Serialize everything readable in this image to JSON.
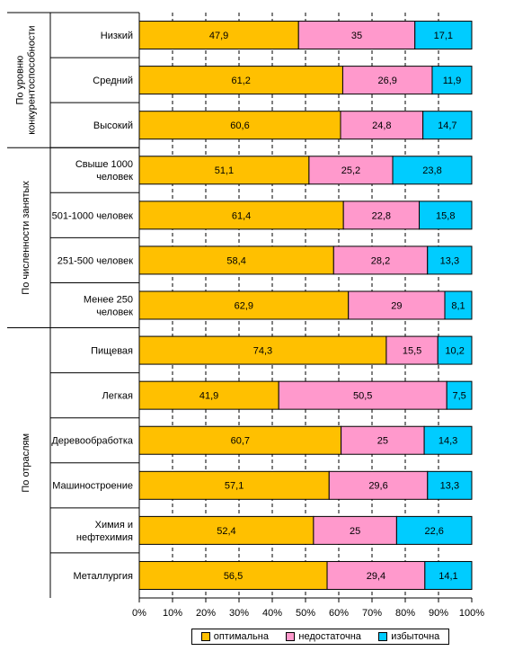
{
  "chart_data": {
    "type": "bar",
    "orientation": "horizontal",
    "stacked": "percent",
    "groups": [
      {
        "label": "По уровню конкурентоспособности",
        "lines": [
          "По уровню",
          "конкурентоспособности"
        ],
        "rows": 3
      },
      {
        "label": "По численности занятых",
        "lines": [
          "По численности занятых"
        ],
        "rows": 4
      },
      {
        "label": "По отраслям",
        "lines": [
          "По отраслям"
        ],
        "rows": 6
      }
    ],
    "categories": [
      "Низкий",
      "Средний",
      "Высокий",
      "Свыше 1000 человек",
      "501-1000 человек",
      "251-500 человек",
      "Менее 250 человек",
      "Пищевая",
      "Легкая",
      "Деревообработка",
      "Машиностроение",
      "Химия и нефтехимия",
      "Металлургия"
    ],
    "category_lines": [
      [
        "Низкий"
      ],
      [
        "Средний"
      ],
      [
        "Высокий"
      ],
      [
        "Свыше 1000",
        "человек"
      ],
      [
        "501-1000 человек"
      ],
      [
        "251-500 человек"
      ],
      [
        "Менее 250",
        "человек"
      ],
      [
        "Пищевая"
      ],
      [
        "Легкая"
      ],
      [
        "Деревообработка"
      ],
      [
        "Машиностроение"
      ],
      [
        "Химия и",
        "нефтехимия"
      ],
      [
        "Металлургия"
      ]
    ],
    "series": [
      {
        "name": "оптимальна",
        "color": "#FFC000",
        "values": [
          47.9,
          61.2,
          60.6,
          51.1,
          61.4,
          58.4,
          62.9,
          74.3,
          41.9,
          60.7,
          57.1,
          52.4,
          56.5
        ],
        "labels": [
          "47,9",
          "61,2",
          "60,6",
          "51,1",
          "61,4",
          "58,4",
          "62,9",
          "74,3",
          "41,9",
          "60,7",
          "57,1",
          "52,4",
          "56,5"
        ]
      },
      {
        "name": "недостаточна",
        "color": "#FF99CC",
        "values": [
          35,
          26.9,
          24.8,
          25.2,
          22.8,
          28.2,
          29,
          15.5,
          50.5,
          25,
          29.6,
          25,
          29.4
        ],
        "labels": [
          "35",
          "26,9",
          "24,8",
          "25,2",
          "22,8",
          "28,2",
          "29",
          "15,5",
          "50,5",
          "25",
          "29,6",
          "25",
          "29,4"
        ]
      },
      {
        "name": "избыточна",
        "color": "#00CCFF",
        "values": [
          17.1,
          11.9,
          14.7,
          23.8,
          15.8,
          13.3,
          8.1,
          10.2,
          7.5,
          14.3,
          13.3,
          22.6,
          14.1
        ],
        "labels": [
          "17,1",
          "11,9",
          "14,7",
          "23,8",
          "15,8",
          "13,3",
          "8,1",
          "10,2",
          "7,5",
          "14,3",
          "13,3",
          "22,6",
          "14,1"
        ]
      }
    ],
    "x_ticks": [
      "0%",
      "10%",
      "20%",
      "30%",
      "40%",
      "50%",
      "60%",
      "70%",
      "80%",
      "90%",
      "100%"
    ],
    "xlim": [
      0,
      100
    ],
    "grid": "vertical dashed",
    "legend": "bottom"
  },
  "legend": {
    "items": [
      {
        "label": "оптимальна",
        "color": "#FFC000"
      },
      {
        "label": "недостаточна",
        "color": "#FF99CC"
      },
      {
        "label": "избыточна",
        "color": "#00CCFF"
      }
    ]
  }
}
